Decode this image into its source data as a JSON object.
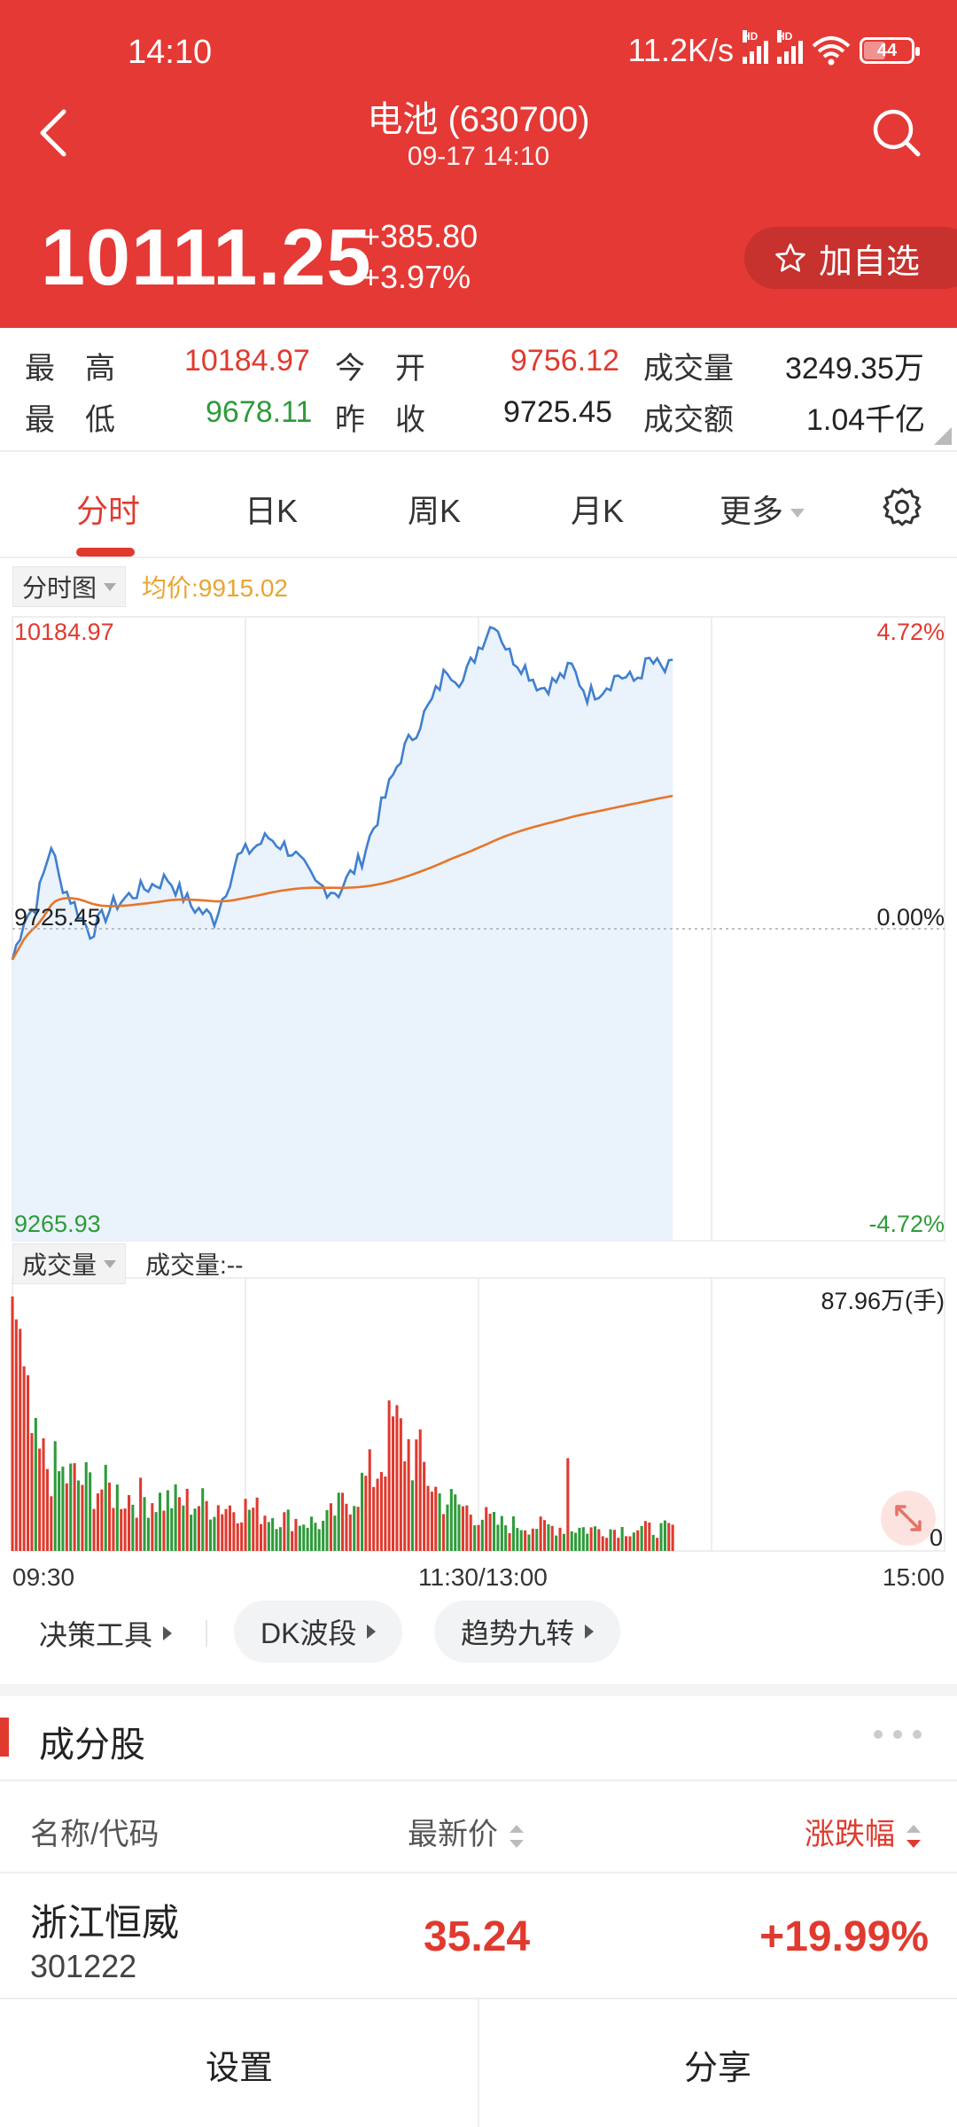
{
  "status": {
    "time": "14:10",
    "net_speed": "11.2K/s",
    "sig_tag": "HD",
    "battery": "44",
    "battery_level": 0.44
  },
  "header": {
    "title": "电池 (630700)",
    "subtitle": "09-17 14:10",
    "price": "10111.25",
    "change": "+385.80",
    "change_pct": "+3.97%",
    "add_watch": "加自选"
  },
  "stats": {
    "high_label": "最　高",
    "high": "10184.97",
    "open_label": "今　开",
    "open": "9756.12",
    "volume_label": "成交量",
    "volume": "3249.35万",
    "low_label": "最　低",
    "low": "9678.11",
    "prev_label": "昨　收",
    "prev": "9725.45",
    "turnover_label": "成交额",
    "turnover": "1.04千亿"
  },
  "tabs": [
    {
      "label": "分时"
    },
    {
      "label": "日K"
    },
    {
      "label": "周K"
    },
    {
      "label": "月K"
    },
    {
      "label": "更多"
    }
  ],
  "chart": {
    "mode_label": "分时图",
    "avg_label": "均价:9915.02",
    "top_price": "10184.97",
    "top_pct": "4.72%",
    "mid_price": "9725.45",
    "mid_pct": "0.00%",
    "bottom_price": "9265.93",
    "bottom_pct": "-4.72%",
    "vol_mode_label": "成交量",
    "vol_value_label": "成交量:--",
    "vol_max": "87.96万(手)",
    "vol_zero": "0",
    "t_start": "09:30",
    "t_mid": "11:30/13:00",
    "t_end": "15:00",
    "colors": {
      "price_line": "#3f7fcf",
      "avg_line": "#e5762a",
      "up": "#e03a2f",
      "down": "#2e9b3a",
      "fill": "#eaf2fc"
    }
  },
  "tools": {
    "decision": "决策工具",
    "dk": "DK波段",
    "trend": "趋势九转"
  },
  "components": {
    "title": "成分股",
    "col_name": "名称/代码",
    "col_price": "最新价",
    "col_change": "涨跌幅",
    "rows": [
      {
        "name": "浙江恒威",
        "code": "301222",
        "price": "35.24",
        "change": "+19.99%"
      }
    ]
  },
  "bottom": {
    "settings": "设置",
    "share": "分享"
  }
}
